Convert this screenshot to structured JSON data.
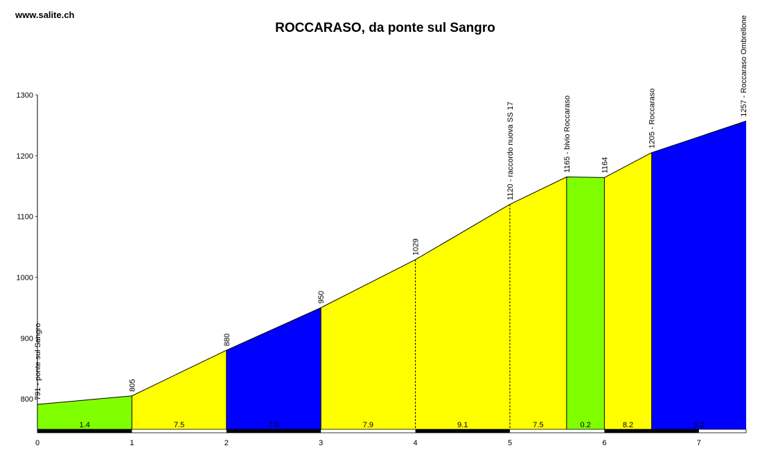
{
  "site": "www.salite.ch",
  "chart_data": {
    "type": "area",
    "title": "ROCCARASO, da ponte sul Sangro",
    "xlabel": "",
    "ylabel": "",
    "xlim": [
      0,
      7.5
    ],
    "ylim": [
      750,
      1300
    ],
    "yticks": [
      800,
      900,
      1000,
      1100,
      1200,
      1300
    ],
    "xticks": [
      0,
      1,
      2,
      3,
      4,
      5,
      6,
      7
    ],
    "grid": false,
    "points": [
      {
        "x": 0,
        "y": 791,
        "label": "791 - ponte sul Sangro"
      },
      {
        "x": 1,
        "y": 805,
        "label": "805"
      },
      {
        "x": 2,
        "y": 880,
        "label": "880"
      },
      {
        "x": 3,
        "y": 950,
        "label": "950"
      },
      {
        "x": 4,
        "y": 1029,
        "label": "1029"
      },
      {
        "x": 5,
        "y": 1120,
        "label": "1120 - raccordo nuova SS 17"
      },
      {
        "x": 5.6,
        "y": 1165,
        "label": "1165 - bivio Roccaraso"
      },
      {
        "x": 6,
        "y": 1164,
        "label": "1164"
      },
      {
        "x": 6.5,
        "y": 1205,
        "label": "1205 - Roccaraso"
      },
      {
        "x": 7.5,
        "y": 1257,
        "label": "1257 - Roccaraso Ombrellone"
      }
    ],
    "segments": [
      {
        "x0": 0,
        "x1": 1,
        "gradient": "1.4",
        "color": "#80ff00"
      },
      {
        "x0": 1,
        "x1": 2,
        "gradient": "7.5",
        "color": "#ffff00"
      },
      {
        "x0": 2,
        "x1": 3,
        "gradient": "7.0",
        "color": "#0000ff"
      },
      {
        "x0": 3,
        "x1": 4,
        "gradient": "7.9",
        "color": "#ffff00"
      },
      {
        "x0": 4,
        "x1": 5,
        "gradient": "9.1",
        "color": "#ffff00"
      },
      {
        "x0": 5,
        "x1": 5.6,
        "gradient": "7.5",
        "color": "#ffff00"
      },
      {
        "x0": 5.6,
        "x1": 6,
        "gradient": "0.2",
        "color": "#80ff00"
      },
      {
        "x0": 6,
        "x1": 6.5,
        "gradient": "8.2",
        "color": "#ffff00"
      },
      {
        "x0": 6.5,
        "x1": 7.5,
        "gradient": "5.2",
        "color": "#0000ff"
      }
    ]
  }
}
